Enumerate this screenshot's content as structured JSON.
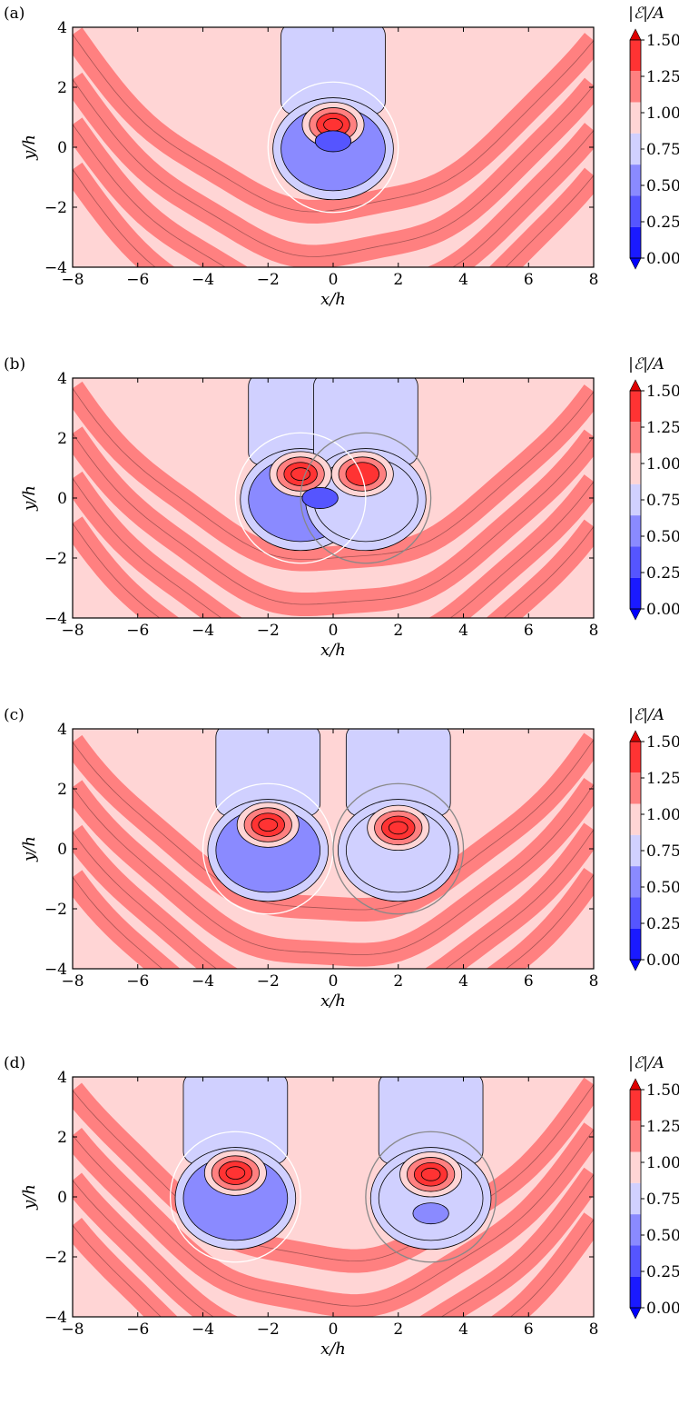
{
  "chart_data": [
    {
      "type": "heatmap",
      "panel_label": "(a)",
      "xlabel": "x/h",
      "ylabel": "y/h",
      "xlim": [
        -8,
        8
      ],
      "ylim": [
        -4,
        4
      ],
      "xticks": [
        "−8",
        "−6",
        "−4",
        "−2",
        "0",
        "2",
        "4",
        "6",
        "8"
      ],
      "yticks": [
        "−4",
        "−2",
        "0",
        "2",
        "4"
      ],
      "circles": [
        {
          "cx": 0,
          "cy": 0,
          "r": 2,
          "color": "#ffffff"
        }
      ],
      "features": [
        {
          "cx": 0,
          "cy": 0.75,
          "level": 6
        },
        {
          "cx": 0,
          "cy": 0.2,
          "level": 1
        }
      ]
    },
    {
      "type": "heatmap",
      "panel_label": "(b)",
      "xlabel": "x/h",
      "ylabel": "y/h",
      "xlim": [
        -8,
        8
      ],
      "ylim": [
        -4,
        4
      ],
      "xticks": [
        "−8",
        "−6",
        "−4",
        "−2",
        "0",
        "2",
        "4",
        "6",
        "8"
      ],
      "yticks": [
        "−4",
        "−2",
        "0",
        "2",
        "4"
      ],
      "circles": [
        {
          "cx": -1,
          "cy": 0,
          "r": 2,
          "color": "#ffffff"
        },
        {
          "cx": 1,
          "cy": 0,
          "r": 2,
          "color": "#888888"
        }
      ],
      "features": [
        {
          "cx": -1,
          "cy": 0.8,
          "level": 6
        },
        {
          "cx": 0.9,
          "cy": 0.8,
          "level": 5
        },
        {
          "cx": -0.4,
          "cy": 0.0,
          "level": 1
        }
      ]
    },
    {
      "type": "heatmap",
      "panel_label": "(c)",
      "xlabel": "x/h",
      "ylabel": "y/h",
      "xlim": [
        -8,
        8
      ],
      "ylim": [
        -4,
        4
      ],
      "xticks": [
        "−8",
        "−6",
        "−4",
        "−2",
        "0",
        "2",
        "4",
        "6",
        "8"
      ],
      "yticks": [
        "−4",
        "−2",
        "0",
        "2",
        "4"
      ],
      "circles": [
        {
          "cx": -2,
          "cy": 0,
          "r": 2,
          "color": "#ffffff"
        },
        {
          "cx": 2,
          "cy": 0,
          "r": 2,
          "color": "#888888"
        }
      ],
      "features": [
        {
          "cx": -2,
          "cy": 0.8,
          "level": 6
        },
        {
          "cx": 2,
          "cy": 0.7,
          "level": 6
        }
      ]
    },
    {
      "type": "heatmap",
      "panel_label": "(d)",
      "xlabel": "x/h",
      "ylabel": "y/h",
      "xlim": [
        -8,
        8
      ],
      "ylim": [
        -4,
        4
      ],
      "xticks": [
        "−8",
        "−6",
        "−4",
        "−2",
        "0",
        "2",
        "4",
        "6",
        "8"
      ],
      "yticks": [
        "−4",
        "−2",
        "0",
        "2",
        "4"
      ],
      "circles": [
        {
          "cx": -3,
          "cy": 0,
          "r": 2,
          "color": "#ffffff"
        },
        {
          "cx": 3,
          "cy": 0,
          "r": 2,
          "color": "#888888"
        }
      ],
      "features": [
        {
          "cx": -3,
          "cy": 0.8,
          "level": 6
        },
        {
          "cx": 3,
          "cy": 0.75,
          "level": 6
        },
        {
          "cx": 3,
          "cy": -0.55,
          "level": 2
        }
      ]
    }
  ],
  "colorbar": {
    "title": "|ℰ|/A",
    "ticks": [
      "1.50",
      "1.25",
      "1.00",
      "0.75",
      "0.50",
      "0.25",
      "0.00"
    ],
    "levels": [
      0.0,
      0.25,
      0.5,
      0.75,
      1.0,
      1.25,
      1.5
    ],
    "colors": [
      "#1a1aff",
      "#5555ff",
      "#8a8aff",
      "#d0d0ff",
      "#ffd5d5",
      "#ff8080",
      "#ff3333"
    ],
    "extend_low_color": "#0000ff",
    "extend_high_color": "#e00000"
  }
}
